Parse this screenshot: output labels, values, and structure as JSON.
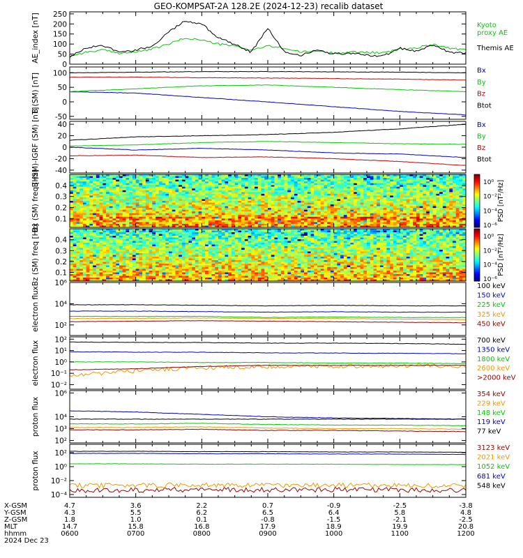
{
  "title": "GEO-KOMPSAT-2A 128.2E (2024-12-23) recalib dataset",
  "x_ticks": [
    "0600",
    "0700",
    "0800",
    "0900",
    "1000",
    "1100",
    "1200"
  ],
  "footer": {
    "row_labels": [
      "X-GSM",
      "Y-GSM",
      "Z-GSM",
      "MLT",
      "hhmm"
    ],
    "rows": [
      [
        "4.7",
        "3.6",
        "2.2",
        "0.7",
        "-0.9",
        "-2.5",
        "-3.8"
      ],
      [
        "4.3",
        "5.5",
        "6.2",
        "6.5",
        "6.4",
        "5.8",
        "4.8"
      ],
      [
        "1.8",
        "1.0",
        "0.1",
        "-0.8",
        "-1.5",
        "-2.1",
        "-2.5"
      ],
      [
        "14.7",
        "15.8",
        "16.8",
        "17.9",
        "18.9",
        "19.9",
        "20.8"
      ],
      [
        "0600",
        "0700",
        "0800",
        "0900",
        "1000",
        "1100",
        "1200"
      ]
    ],
    "date": "2024 Dec 23"
  },
  "chart_data": [
    {
      "type": "line",
      "ylabel": "AE_index [nT]",
      "ylim": [
        0,
        260
      ],
      "yticks": [
        "250",
        "200",
        "150",
        "100",
        "50",
        "0"
      ],
      "ytick_values": [
        250,
        200,
        150,
        100,
        50,
        0
      ],
      "x": [
        6.0,
        6.25,
        6.5,
        6.75,
        7.0,
        7.25,
        7.5,
        7.75,
        8.0,
        8.25,
        8.5,
        8.75,
        9.0,
        9.25,
        9.5,
        9.75,
        10.0,
        10.25,
        10.5,
        10.75,
        11.0,
        11.25,
        11.5,
        11.75,
        12.0
      ],
      "series": [
        {
          "name": "Kyoto proxy AE",
          "color": "#00cc00",
          "values": [
            40,
            60,
            70,
            55,
            60,
            75,
            100,
            130,
            120,
            100,
            90,
            70,
            90,
            80,
            60,
            65,
            55,
            60,
            60,
            55,
            75,
            80,
            100,
            80,
            70
          ]
        },
        {
          "name": "Themis AE",
          "color": "#000000",
          "values": [
            35,
            80,
            95,
            60,
            70,
            90,
            160,
            215,
            200,
            130,
            100,
            60,
            180,
            60,
            45,
            70,
            50,
            55,
            45,
            40,
            80,
            65,
            95,
            60,
            55
          ]
        }
      ]
    },
    {
      "type": "line",
      "ylabel": "B (SM) [nT]",
      "ylim": [
        -60,
        120
      ],
      "yticks": [
        "100",
        "50",
        "0",
        "-50"
      ],
      "ytick_values": [
        100,
        50,
        0,
        -50
      ],
      "x": [
        6,
        7,
        8,
        9,
        10,
        11,
        12
      ],
      "series": [
        {
          "name": "Bx",
          "color": "#0000cc",
          "values": [
            35,
            30,
            15,
            0,
            -17,
            -33,
            -45
          ]
        },
        {
          "name": "By",
          "color": "#00cc00",
          "values": [
            35,
            45,
            55,
            58,
            50,
            42,
            35
          ]
        },
        {
          "name": "Bz",
          "color": "#cc0000",
          "values": [
            85,
            85,
            83,
            82,
            80,
            78,
            75
          ]
        },
        {
          "name": "Btot",
          "color": "#000000",
          "values": [
            100,
            102,
            104,
            104,
            103,
            102,
            100
          ]
        }
      ]
    },
    {
      "type": "line",
      "ylabel": "B (SM)-IGRF (SM) [nT]",
      "ylim": [
        -45,
        45
      ],
      "yticks": [
        "40",
        "20",
        "0",
        "-20",
        "-40"
      ],
      "ytick_values": [
        40,
        20,
        0,
        -20,
        -40
      ],
      "x": [
        6,
        7,
        8,
        9,
        10,
        11,
        12
      ],
      "series": [
        {
          "name": "Bx",
          "color": "#0000cc",
          "values": [
            0,
            -5,
            -2,
            -5,
            -10,
            -12,
            -18
          ]
        },
        {
          "name": "By",
          "color": "#00cc00",
          "values": [
            2,
            4,
            8,
            10,
            8,
            6,
            5
          ]
        },
        {
          "name": "Bz",
          "color": "#cc0000",
          "values": [
            -15,
            -14,
            -18,
            -17,
            -20,
            -25,
            -32
          ]
        },
        {
          "name": "Btot",
          "color": "#000000",
          "values": [
            12,
            18,
            20,
            22,
            26,
            32,
            40
          ]
        }
      ]
    },
    {
      "type": "heatmap",
      "ylabel": "Bx (SM) freq [Hz]",
      "ylim": [
        0.02,
        0.5
      ],
      "yticks": [
        "0.4",
        "0.3",
        "0.2",
        "0.1"
      ],
      "ytick_values": [
        0.4,
        0.3,
        0.2,
        0.1
      ],
      "colorbar_label": "PSD [nT²/Hz]",
      "colorbar_ticks": [
        "10⁰",
        "10⁻²",
        "10⁻⁴",
        "10⁻⁶"
      ]
    },
    {
      "type": "heatmap",
      "ylabel": "Bz (SM) freq [Hz]",
      "ylim": [
        0.02,
        0.5
      ],
      "yticks": [
        "0.4",
        "0.3",
        "0.2",
        "0.1"
      ],
      "ytick_values": [
        0.4,
        0.3,
        0.2,
        0.1
      ],
      "colorbar_label": "PSD [nT²/Hz]",
      "colorbar_ticks": [
        "10⁰",
        "10⁻²",
        "10⁻⁴",
        "10⁻⁶"
      ]
    },
    {
      "type": "line",
      "ylabel": "electron flux",
      "yscale": "log",
      "ylim": [
        1,
        6
      ],
      "yticks": [
        "10⁶",
        "10⁴",
        "10²"
      ],
      "ytick_values": [
        6,
        4,
        2
      ],
      "x": [
        6,
        7,
        8,
        9,
        10,
        11,
        12
      ],
      "series": [
        {
          "name": "100 keV",
          "color": "#000000",
          "values": [
            3.9,
            3.9,
            3.85,
            3.8,
            3.85,
            3.8,
            3.8
          ]
        },
        {
          "name": "150 keV",
          "color": "#0000cc",
          "values": [
            3.3,
            3.3,
            3.25,
            3.2,
            3.25,
            3.2,
            3.2
          ]
        },
        {
          "name": "225 keV",
          "color": "#00cc00",
          "values": [
            2.8,
            2.8,
            2.8,
            2.7,
            2.75,
            2.7,
            2.7
          ]
        },
        {
          "name": "325 keV",
          "color": "#ee9900",
          "values": [
            2.6,
            2.62,
            2.65,
            2.6,
            2.6,
            2.55,
            2.5
          ]
        },
        {
          "name": "450 keV",
          "color": "#990000",
          "values": [
            2.3,
            2.35,
            2.4,
            2.35,
            2.3,
            2.25,
            2.2
          ]
        }
      ]
    },
    {
      "type": "line",
      "ylabel": "electron flux",
      "yscale": "log",
      "ylim": [
        -2.4,
        2.2
      ],
      "yticks": [
        "10²",
        "10¹",
        "10⁰",
        "10⁻¹",
        "10⁻²"
      ],
      "ytick_values": [
        2,
        1,
        0,
        -1,
        -2
      ],
      "x": [
        6,
        7,
        8,
        9,
        10,
        11,
        12
      ],
      "series": [
        {
          "name": "700 keV",
          "color": "#000000",
          "values": [
            1.75,
            1.72,
            1.7,
            1.65,
            1.65,
            1.62,
            1.55
          ]
        },
        {
          "name": "1350 keV",
          "color": "#0000cc",
          "values": [
            0.9,
            0.85,
            0.85,
            0.8,
            0.78,
            0.75,
            0.72
          ]
        },
        {
          "name": "1800 keV",
          "color": "#00cc00",
          "values": [
            0,
            0,
            -0.05,
            -0.05,
            -0.1,
            -0.1,
            -0.15
          ]
        },
        {
          "name": "2600 keV",
          "color": "#ee9900",
          "values": [
            -1.2,
            -0.8,
            -0.5,
            -0.4,
            -0.4,
            -0.35,
            -0.35
          ]
        },
        {
          "name": ">2000 keV",
          "color": "#990000",
          "values": [
            -0.7,
            -0.6,
            -0.4,
            -0.3,
            -0.3,
            -0.3,
            -0.3
          ]
        }
      ]
    },
    {
      "type": "line",
      "ylabel": "proton flux",
      "yscale": "log",
      "ylim": [
        1.8,
        6.2
      ],
      "yticks": [
        "10⁶",
        "10⁴",
        "10³",
        "10²"
      ],
      "ytick_values": [
        6,
        4,
        3,
        2
      ],
      "x": [
        6,
        7,
        8,
        9,
        10,
        11,
        12
      ],
      "series": [
        {
          "name": "354 keV",
          "color": "#990000",
          "values": [
            2.9,
            2.9,
            2.95,
            2.85,
            2.85,
            2.8,
            2.75
          ]
        },
        {
          "name": "229 keV",
          "color": "#ee9900",
          "values": [
            3.1,
            3.1,
            3.15,
            3.05,
            3.0,
            3.0,
            2.95
          ]
        },
        {
          "name": "148 keV",
          "color": "#00cc00",
          "values": [
            3.4,
            3.4,
            3.45,
            3.35,
            3.3,
            3.3,
            3.25
          ]
        },
        {
          "name": "119 keV",
          "color": "#0000cc",
          "values": [
            4.5,
            4.4,
            4.2,
            4.0,
            3.9,
            3.85,
            3.8
          ]
        },
        {
          "name": "77 keV",
          "color": "#000000",
          "values": [
            3.8,
            3.8,
            3.8,
            3.8,
            3.8,
            3.8,
            3.8
          ]
        }
      ]
    },
    {
      "type": "line",
      "ylabel": "proton flux",
      "yscale": "log",
      "ylim": [
        -4.4,
        3.2
      ],
      "yticks": [
        "10²",
        "10⁰",
        "10⁻²",
        "10⁻⁴"
      ],
      "ytick_values": [
        2,
        0,
        -2,
        -4
      ],
      "x": [
        6,
        7,
        8,
        9,
        10,
        11,
        12
      ],
      "series": [
        {
          "name": "3123 keV",
          "color": "#990000",
          "values": [
            -3.4,
            -3.35,
            -3.3,
            -3.35,
            -3.3,
            -3.35,
            -3.4
          ]
        },
        {
          "name": "2021 keV",
          "color": "#ee9900",
          "values": [
            -2.7,
            -2.7,
            -2.65,
            -2.7,
            -2.65,
            -2.7,
            -2.7
          ]
        },
        {
          "name": "1052 keV",
          "color": "#00cc00",
          "values": [
            0.4,
            0.4,
            0.35,
            0.35,
            0.35,
            0.3,
            0.3
          ]
        },
        {
          "name": "681 keV",
          "color": "#0000cc",
          "values": [
            1.9,
            1.9,
            1.85,
            1.85,
            1.8,
            1.8,
            1.75
          ]
        },
        {
          "name": "548 keV",
          "color": "#000000",
          "values": [
            2.2,
            2.2,
            2.15,
            2.15,
            2.1,
            2.1,
            2.05
          ]
        }
      ]
    }
  ]
}
